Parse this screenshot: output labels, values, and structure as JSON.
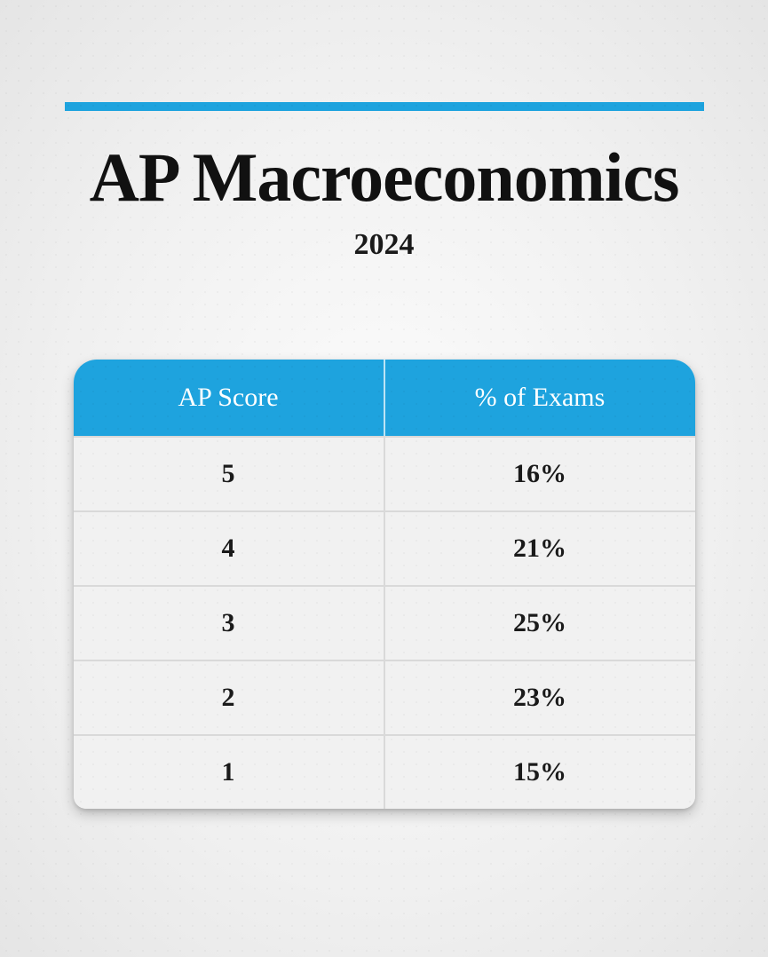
{
  "title": "AP Macroeconomics",
  "year": "2024",
  "accent_color": "#1ea3de",
  "text_color": "#111111",
  "header_text_color": "#ffffff",
  "row_bg": "#f1f1f1",
  "row_border": "#d9d9d9",
  "table": {
    "columns": [
      "AP Score",
      "% of Exams"
    ],
    "rows": [
      [
        "5",
        "16%"
      ],
      [
        "4",
        "21%"
      ],
      [
        "3",
        "25%"
      ],
      [
        "2",
        "23%"
      ],
      [
        "1",
        "15%"
      ]
    ]
  }
}
